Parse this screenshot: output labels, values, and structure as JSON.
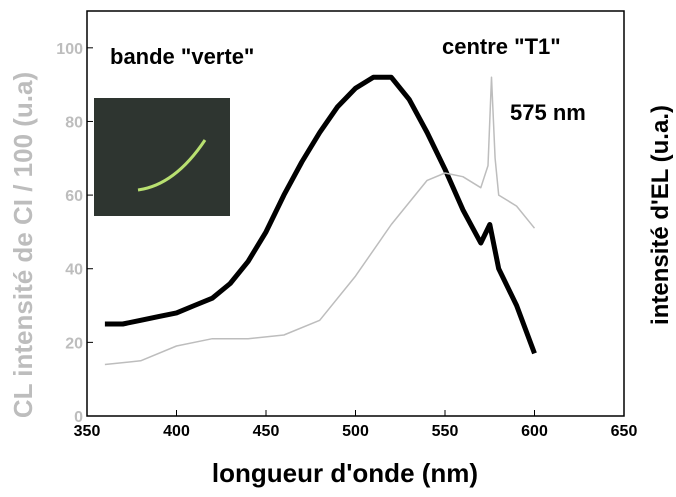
{
  "chart_data": {
    "type": "line",
    "xlabel": "longueur d'onde (nm)",
    "ylabel": "CL intensité de CI / 100 (u.a)",
    "y2label": "intensité d'EL (u.a.)",
    "annotations": [
      "bande \"verte\"",
      "centre \"T1\"",
      "575 nm"
    ],
    "xlim": [
      350,
      650
    ],
    "xticks": [
      350,
      400,
      450,
      500,
      550,
      600,
      650
    ],
    "ylim": [
      0,
      110
    ],
    "yticks": [
      0,
      20,
      40,
      60,
      80,
      100
    ],
    "series": [
      {
        "color": "#000000",
        "x": [
          360,
          370,
          380,
          390,
          400,
          410,
          420,
          430,
          440,
          450,
          460,
          470,
          480,
          490,
          500,
          510,
          520,
          530,
          540,
          550,
          560,
          570,
          575,
          580,
          590,
          600
        ],
        "values": [
          25,
          25,
          26,
          27,
          28,
          30,
          32,
          36,
          42,
          50,
          60,
          69,
          77,
          84,
          89,
          92,
          92,
          86,
          77,
          67,
          56,
          47,
          52,
          40,
          30,
          17
        ]
      },
      {
        "color": "#bdbdbd",
        "x": [
          360,
          380,
          400,
          420,
          440,
          460,
          480,
          500,
          520,
          540,
          550,
          560,
          570,
          574,
          576,
          578,
          580,
          590,
          600
        ],
        "values": [
          14,
          15,
          19,
          21,
          21,
          22,
          26,
          38,
          52,
          64,
          66,
          65,
          62,
          68,
          92,
          70,
          60,
          57,
          51
        ]
      }
    ]
  }
}
